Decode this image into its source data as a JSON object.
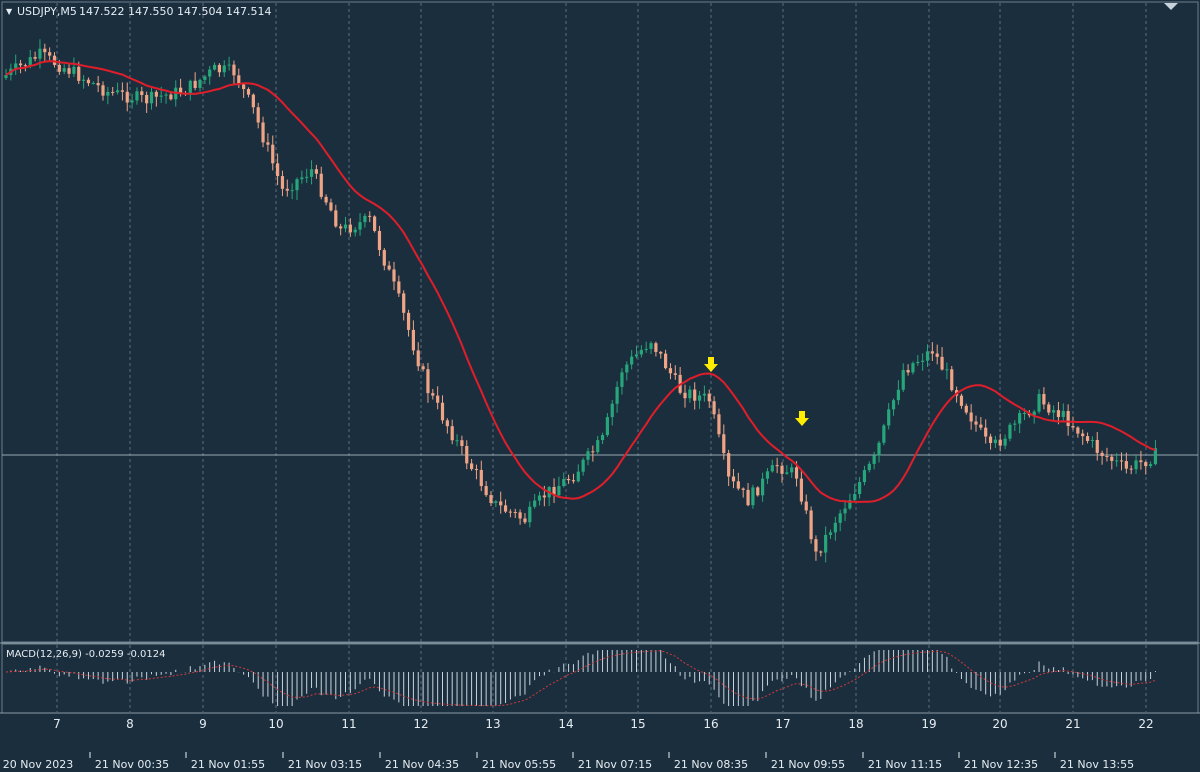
{
  "header": {
    "symbol": "USDJPY,M5",
    "ohlc": "147.522 147.550 147.504 147.514",
    "collapse_glyph": "▼"
  },
  "indicator": {
    "label": "MACD(12,26,9) -0.0259 -0.0124"
  },
  "colors": {
    "background": "#1b2e3e",
    "bull": "#26a67a",
    "bear": "#f0a486",
    "ma_line": "#e01e2a",
    "signal_arrow": "#ffec00",
    "macd_hist": "#c9d4dc",
    "macd_signal": "#d03a3a",
    "axis_text": "#e6edf2",
    "grid": "#6a7f8f"
  },
  "chart_data": {
    "type": "candlestick",
    "symbol": "USDJPY",
    "timeframe": "M5",
    "price_range_estimate": [
      147.42,
      148.02
    ],
    "current_price_line": 147.66,
    "day_axis_ticks": [
      "7",
      "8",
      "9",
      "10",
      "11",
      "12",
      "13",
      "14",
      "15",
      "16",
      "17",
      "18",
      "19",
      "20",
      "21",
      "22"
    ],
    "time_axis_ticks": [
      "20 Nov 2023",
      "21 Nov 00:35",
      "21 Nov 01:55",
      "21 Nov 03:15",
      "21 Nov 04:35",
      "21 Nov 05:55",
      "21 Nov 07:15",
      "21 Nov 08:35",
      "21 Nov 09:55",
      "21 Nov 11:15",
      "21 Nov 12:35",
      "21 Nov 13:55"
    ],
    "signal_arrows": [
      {
        "type": "sell",
        "near": "21 Nov 08:35"
      },
      {
        "type": "sell",
        "near": "21 Nov 09:55"
      }
    ],
    "macd": {
      "params": "12,26,9",
      "main": -0.0259,
      "signal": -0.0124
    }
  }
}
